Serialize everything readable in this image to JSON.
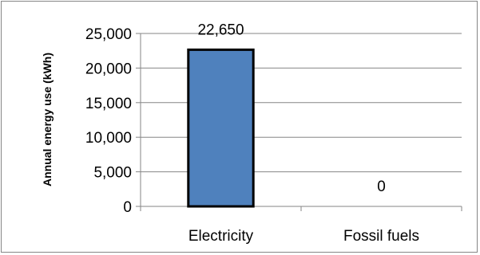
{
  "chart_data": {
    "type": "bar",
    "categories": [
      "Electricity",
      "Fossil fuels"
    ],
    "values": [
      22650,
      0
    ],
    "data_labels": [
      "22,650",
      "0"
    ],
    "ylabel": "Annual energy use (kWh)",
    "xlabel": "",
    "ylim": [
      0,
      25000
    ],
    "yticks": [
      0,
      5000,
      10000,
      15000,
      20000,
      25000
    ],
    "ytick_labels": [
      "0",
      "5,000",
      "10,000",
      "15,000",
      "20,000",
      "25,000"
    ],
    "grid": true,
    "legend": "none",
    "colors": {
      "bar_fill": "#4f81bd",
      "bar_stroke": "#000000",
      "grid": "#868686"
    }
  }
}
